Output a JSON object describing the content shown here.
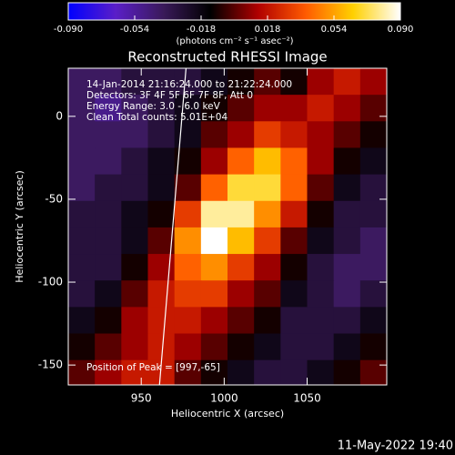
{
  "chart_data": {
    "type": "heatmap",
    "title": "Reconstructed RHESSI Image",
    "xlabel": "Heliocentric X (arcsec)",
    "ylabel": "Heliocentric Y (arcsec)",
    "colorbar_label": "(photons cm⁻² s⁻¹ asec⁻²)",
    "annotations": [
      "14-Jan-2014 21:16:24.000 to 21:22:24.000",
      "Detectors: 3F 4F 5F 6F 7F 8F, Att 0",
      "Energy Range: 3.0 - 6.0 keV",
      "Clean    Total counts: 5.01E+04"
    ],
    "peak_label": "Position of Peak = [997,-65]",
    "timestamp": "11-May-2022 19:40",
    "xlim": [
      906,
      1098
    ],
    "ylim": [
      -162,
      29
    ],
    "xticks": [
      950,
      1000,
      1050
    ],
    "yticks": [
      -150,
      -100,
      -50,
      0
    ],
    "zlim": [
      -0.09,
      0.09
    ],
    "zticks": [
      {
        "value": -0.09,
        "label": "-0.090"
      },
      {
        "value": -0.054,
        "label": "-0.054"
      },
      {
        "value": -0.018,
        "label": "-0.018"
      },
      {
        "value": 0.018,
        "label": "0.018"
      },
      {
        "value": 0.054,
        "label": "0.054"
      },
      {
        "value": 0.09,
        "label": "0.090"
      }
    ],
    "colormap": [
      "#0000ff",
      "#5a1ec8",
      "#3a1a5a",
      "#000000",
      "#b00000",
      "#ff5a00",
      "#ffd000",
      "#ffffff"
    ],
    "limb": {
      "x": [
        977,
        961
      ],
      "y": [
        29,
        -162
      ],
      "color": "#ffffff"
    },
    "x": [
      914,
      930,
      946,
      962,
      978,
      994,
      1010,
      1026,
      1042,
      1058,
      1074,
      1090
    ],
    "y": [
      21,
      5,
      -11,
      -27,
      -43,
      -59,
      -75,
      -91,
      -107,
      -123,
      -139,
      -155
    ],
    "z": [
      [
        -0.04,
        -0.04,
        -0.03,
        -0.03,
        -0.03,
        -0.02,
        -0.01,
        0.0,
        -0.01,
        0.01,
        0.02,
        0.01
      ],
      [
        -0.04,
        -0.05,
        -0.04,
        -0.03,
        -0.02,
        -0.01,
        0.0,
        0.01,
        0.01,
        0.02,
        0.01,
        0.0
      ],
      [
        -0.04,
        -0.04,
        -0.04,
        -0.03,
        -0.02,
        0.0,
        0.01,
        0.03,
        0.02,
        0.01,
        0.0,
        -0.01
      ],
      [
        -0.04,
        -0.04,
        -0.03,
        -0.02,
        -0.01,
        0.01,
        0.04,
        0.06,
        0.04,
        0.01,
        -0.01,
        -0.02
      ],
      [
        -0.04,
        -0.03,
        -0.03,
        -0.02,
        0.0,
        0.04,
        0.07,
        0.07,
        0.04,
        0.0,
        -0.02,
        -0.03
      ],
      [
        -0.03,
        -0.03,
        -0.02,
        -0.01,
        0.03,
        0.08,
        0.08,
        0.05,
        0.02,
        -0.01,
        -0.03,
        -0.03
      ],
      [
        -0.03,
        -0.03,
        -0.02,
        0.0,
        0.05,
        0.09,
        0.06,
        0.03,
        0.0,
        -0.02,
        -0.03,
        -0.04
      ],
      [
        -0.03,
        -0.03,
        -0.01,
        0.01,
        0.04,
        0.05,
        0.03,
        0.01,
        -0.01,
        -0.03,
        -0.04,
        -0.04
      ],
      [
        -0.03,
        -0.02,
        0.0,
        0.02,
        0.03,
        0.03,
        0.01,
        0.0,
        -0.02,
        -0.03,
        -0.04,
        -0.03
      ],
      [
        -0.02,
        -0.01,
        0.01,
        0.02,
        0.02,
        0.01,
        0.0,
        -0.01,
        -0.03,
        -0.03,
        -0.03,
        -0.02
      ],
      [
        -0.01,
        0.0,
        0.01,
        0.02,
        0.01,
        0.0,
        -0.01,
        -0.02,
        -0.03,
        -0.03,
        -0.02,
        -0.01
      ],
      [
        0.0,
        0.01,
        0.02,
        0.02,
        0.0,
        -0.01,
        -0.02,
        -0.03,
        -0.03,
        -0.02,
        -0.01,
        0.0
      ]
    ]
  }
}
